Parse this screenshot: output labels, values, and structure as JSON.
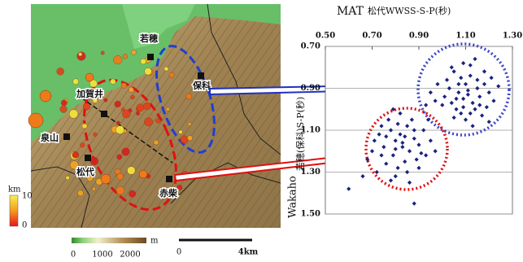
{
  "chart_data": {
    "type": "scatter",
    "xlabel_abbr": "MAT",
    "xlabel": "松代WWSS-S-P(秒)",
    "ylabel_abbr": "Wakaho",
    "ylabel": "若穂(保科)S-P(秒)",
    "color": "#1a237e",
    "xlim": [
      0.5,
      1.3
    ],
    "xticks": [
      {
        "value": 0.5,
        "label": "0.50"
      },
      {
        "value": 0.7,
        "label": "0.70"
      },
      {
        "value": 0.9,
        "label": "0.90"
      },
      {
        "value": 1.1,
        "label": "1.10"
      },
      {
        "value": 1.3,
        "label": "1.30"
      }
    ],
    "ylim": [
      0.7,
      1.5
    ],
    "yticks": [
      {
        "value": 0.7,
        "label": "0.70"
      },
      {
        "value": 0.9,
        "label": "0.90"
      },
      {
        "value": 1.1,
        "label": "1.10"
      },
      {
        "value": 1.3,
        "label": "1.30"
      },
      {
        "value": 1.5,
        "label": "1.50"
      }
    ],
    "inverted_y": true,
    "grid": true,
    "x": [
      1.05,
      1.08,
      1.1,
      1.12,
      1.15,
      1.03,
      1.07,
      1.09,
      1.11,
      1.13,
      1.16,
      1.18,
      1.2,
      1.22,
      1.01,
      0.98,
      0.95,
      1.0,
      1.04,
      1.06,
      1.08,
      1.1,
      1.14,
      1.17,
      1.19,
      1.12,
      1.09,
      1.14,
      1.18,
      1.21,
      1.24,
      1.02,
      0.97,
      1.05,
      1.13,
      1.07,
      1.11,
      1.15,
      1.06,
      1.16,
      0.93,
      1.2,
      1.04,
      1.12,
      1.09,
      0.78,
      0.82,
      0.85,
      0.8,
      0.75,
      0.88,
      0.83,
      0.79,
      0.86,
      0.9,
      0.92,
      0.77,
      0.73,
      0.7,
      0.84,
      0.81,
      0.76,
      0.89,
      0.93,
      0.95,
      0.87,
      0.82,
      0.79,
      0.74,
      0.71,
      0.8,
      0.85,
      0.9,
      0.97,
      0.68,
      0.72,
      0.86,
      0.78,
      0.83,
      0.88,
      0.81,
      0.76,
      0.91,
      0.84,
      0.74,
      0.6,
      0.88,
      0.66,
      0.94,
      0.8
    ],
    "values": [
      0.82,
      0.85,
      0.88,
      0.84,
      0.9,
      0.9,
      0.92,
      0.95,
      0.93,
      0.97,
      0.94,
      0.88,
      0.92,
      0.96,
      0.94,
      0.88,
      0.92,
      0.98,
      0.97,
      1.0,
      1.02,
      1.05,
      1.0,
      1.03,
      0.99,
      0.79,
      0.78,
      0.76,
      0.82,
      0.85,
      0.89,
      0.86,
      0.96,
      1.04,
      1.08,
      0.88,
      0.91,
      0.86,
      0.95,
      0.98,
      0.98,
      1.06,
      0.8,
      1.02,
      0.99,
      1.1,
      1.12,
      1.08,
      1.15,
      1.18,
      1.14,
      1.18,
      1.22,
      1.2,
      1.17,
      1.1,
      1.05,
      1.12,
      1.2,
      1.25,
      1.28,
      1.26,
      1.24,
      1.22,
      1.15,
      1.05,
      1.02,
      1.0,
      1.08,
      1.15,
      1.32,
      1.3,
      1.28,
      1.2,
      1.24,
      1.3,
      1.35,
      1.34,
      1.16,
      1.1,
      1.07,
      1.13,
      1.21,
      1.13,
      1.22,
      1.38,
      1.45,
      1.32,
      1.05,
      1.19
    ]
  },
  "map": {
    "places": [
      "若穂",
      "保科",
      "加賀井",
      "泉山",
      "松代",
      "赤柴"
    ],
    "depth_scale": {
      "unit": "km",
      "max": 10,
      "min": 0
    },
    "elevation_scale": {
      "unit": "m",
      "ticks": [
        0,
        1000,
        2000
      ]
    },
    "distance_scale": {
      "start": 0,
      "end": "4km"
    }
  }
}
